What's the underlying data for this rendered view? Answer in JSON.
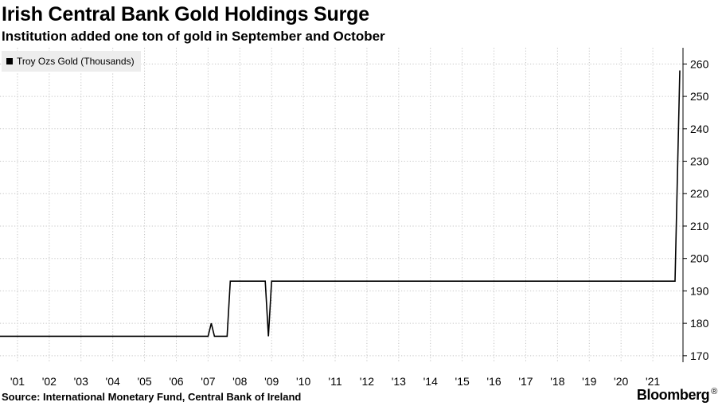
{
  "header": {
    "title": "Irish Central Bank Gold Holdings Surge",
    "subtitle": "Institution added one ton of gold in September and October"
  },
  "footer": {
    "source": "Source: International Monetary Fund, Central Bank of Ireland",
    "brand": "Bloomberg",
    "brand_mark": "®"
  },
  "chart_data": {
    "type": "line",
    "title": "Irish Central Bank Gold Holdings Surge",
    "subtitle": "Institution added one ton of gold in September and October",
    "legend": {
      "position": "top-left",
      "entries": [
        "Troy Ozs Gold (Thousands)"
      ]
    },
    "xlim": [
      2000.45,
      2021.95
    ],
    "ylim": [
      168,
      265
    ],
    "y_axis_side": "right",
    "x_ticks": [
      2001,
      2002,
      2003,
      2004,
      2005,
      2006,
      2007,
      2008,
      2009,
      2010,
      2011,
      2012,
      2013,
      2014,
      2015,
      2016,
      2017,
      2018,
      2019,
      2020,
      2021
    ],
    "x_tick_labels": [
      "'01",
      "'02",
      "'03",
      "'04",
      "'05",
      "'06",
      "'07",
      "'08",
      "'09",
      "'10",
      "'11",
      "'12",
      "'13",
      "'14",
      "'15",
      "'16",
      "'17",
      "'18",
      "'19",
      "'20",
      "'21"
    ],
    "y_ticks": [
      170,
      180,
      190,
      200,
      210,
      220,
      230,
      240,
      250,
      260
    ],
    "y_tick_labels": [
      "170",
      "180",
      "190",
      "200",
      "210",
      "220",
      "230",
      "240",
      "250",
      "260"
    ],
    "grid": true,
    "series": [
      {
        "name": "Troy Ozs Gold (Thousands)",
        "color": "#000000",
        "points": [
          [
            2000.45,
            176
          ],
          [
            2007.0,
            176
          ],
          [
            2007.1,
            180
          ],
          [
            2007.2,
            176
          ],
          [
            2007.6,
            176
          ],
          [
            2007.7,
            193
          ],
          [
            2008.8,
            193
          ],
          [
            2008.9,
            176
          ],
          [
            2009.0,
            193
          ],
          [
            2021.7,
            193
          ],
          [
            2021.85,
            258
          ]
        ]
      }
    ]
  }
}
